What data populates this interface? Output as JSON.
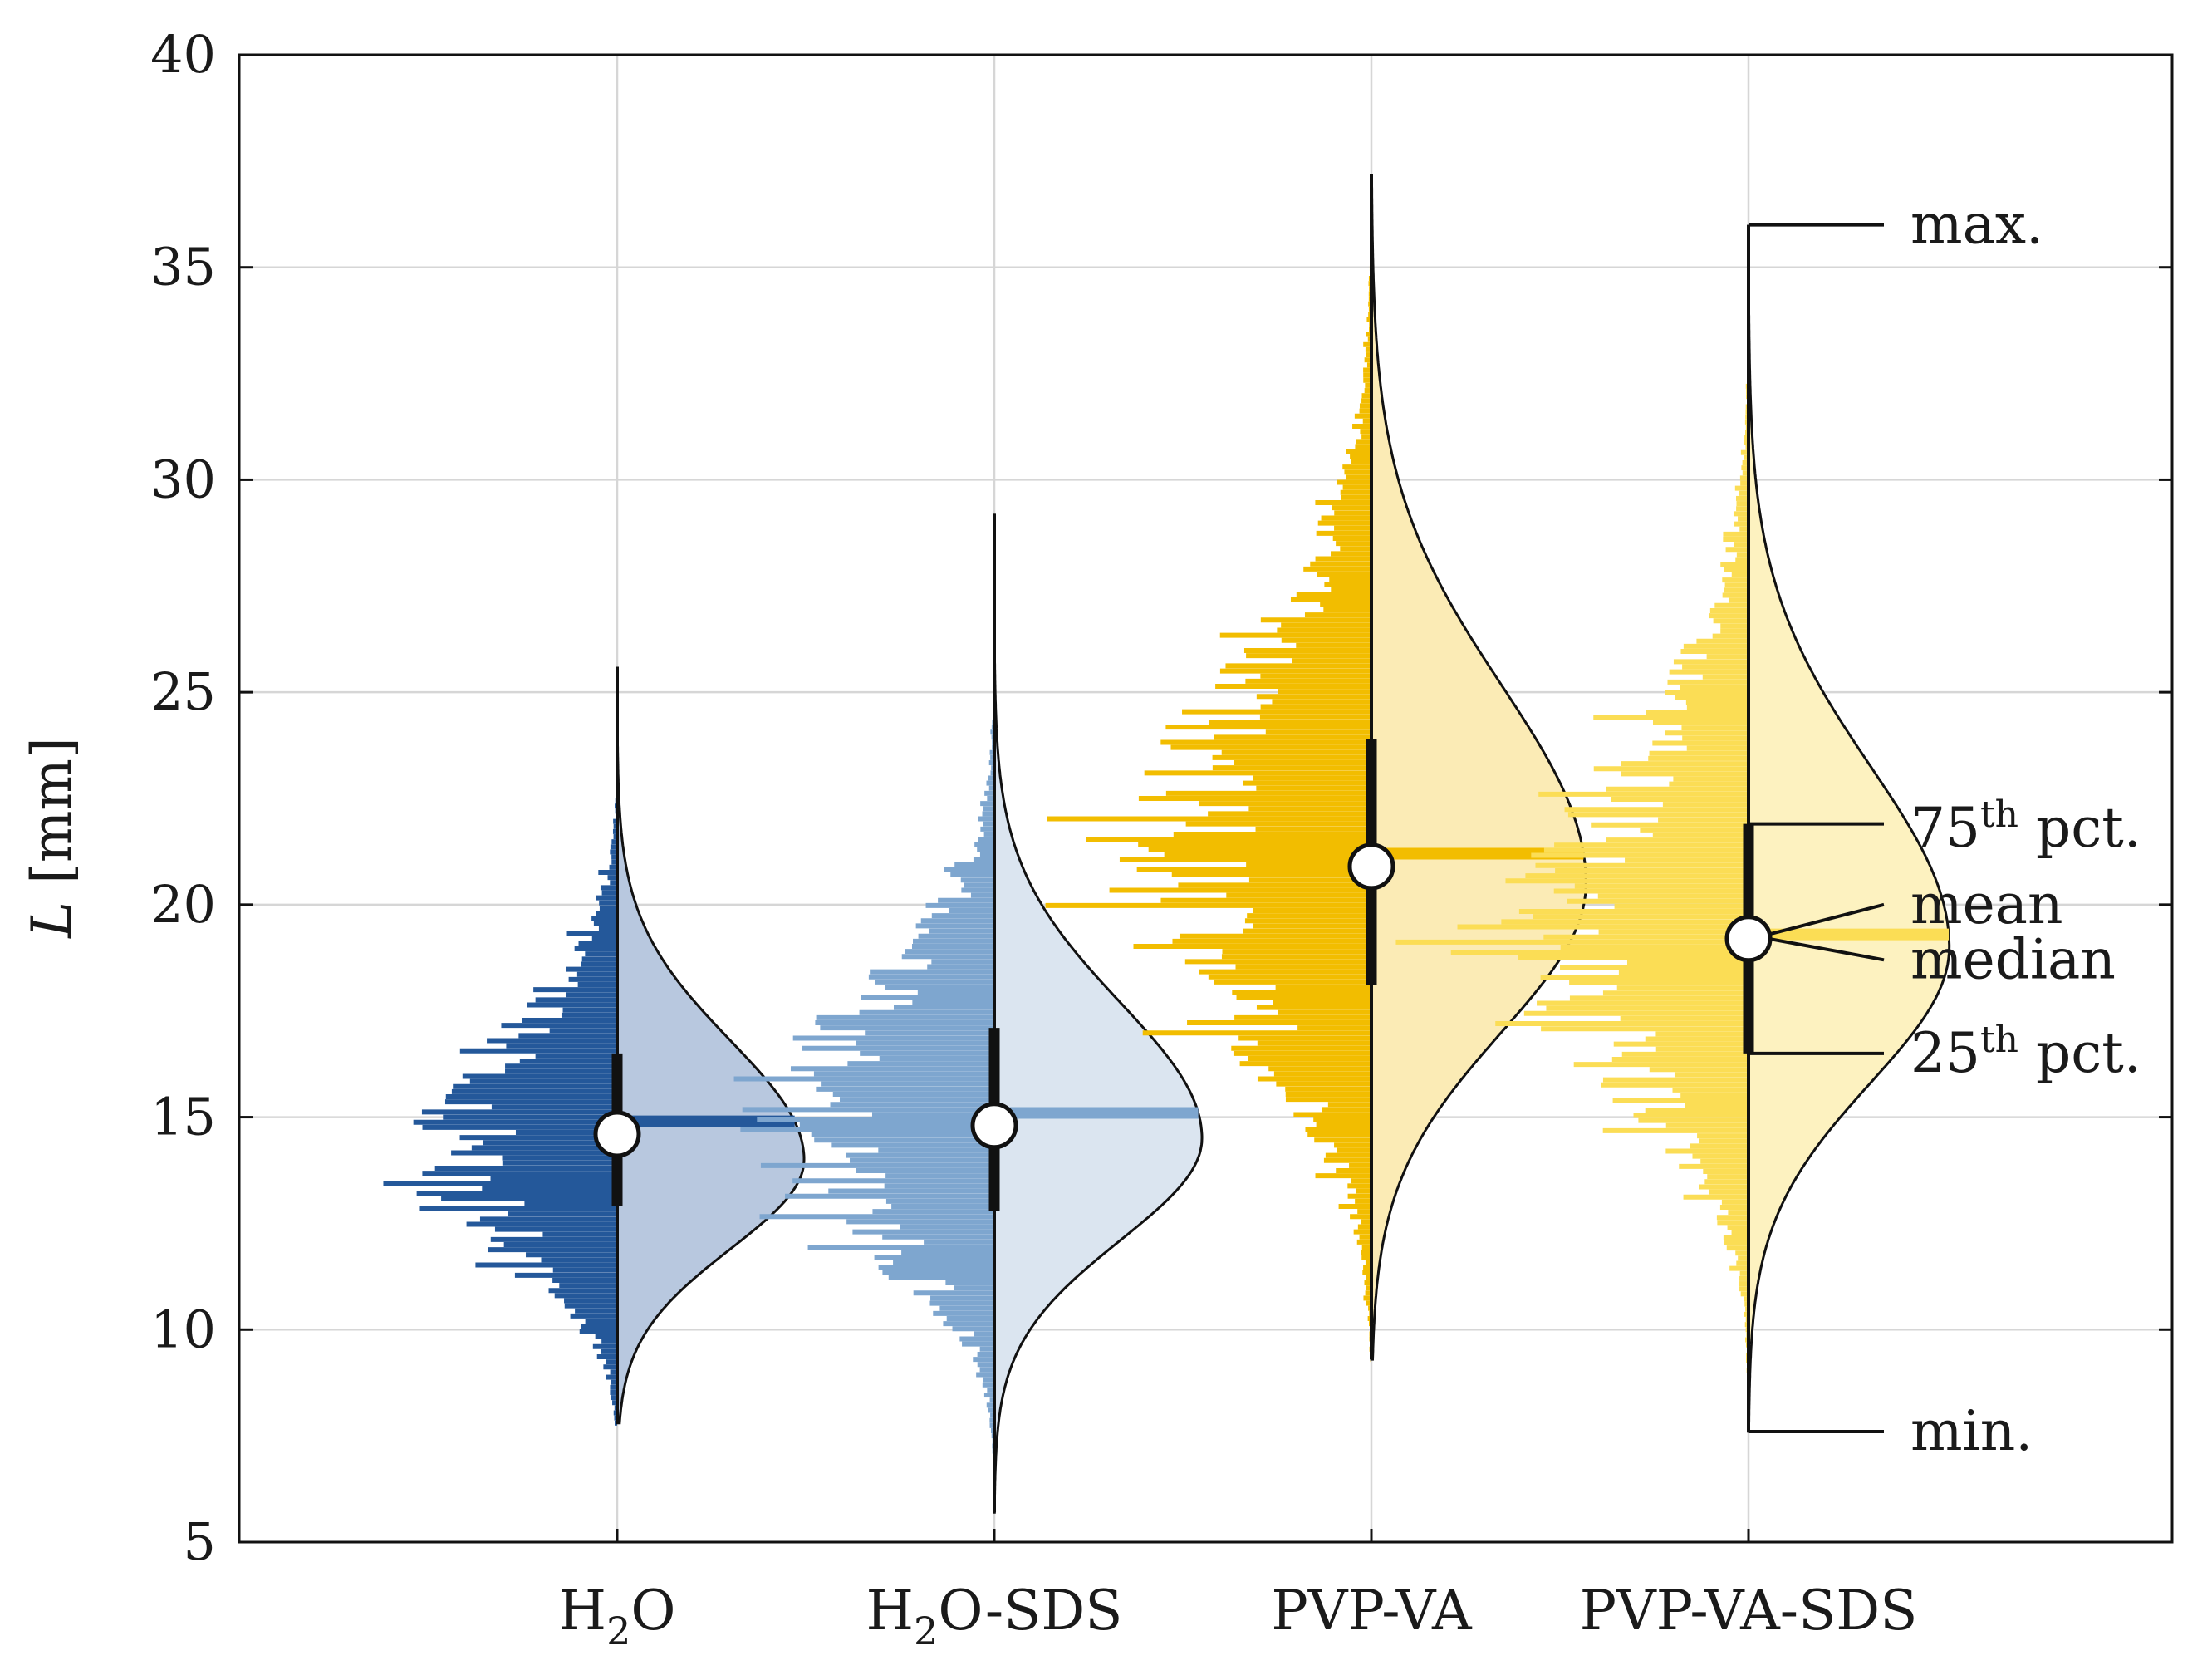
{
  "chart_data": {
    "type": "violin",
    "ylabel_var": "L",
    "ylabel_unit": " [mm]",
    "ylim": [
      5,
      40
    ],
    "yticks": [
      "5",
      "10",
      "15",
      "20",
      "25",
      "30",
      "35",
      "40"
    ],
    "grid": true,
    "categories": [
      {
        "id": "h2o",
        "label_main": "H",
        "label_sub": "2",
        "label_rest": "O",
        "color": "#24589a",
        "fill": "#b8c8df",
        "min": 7.8,
        "q1": 12.9,
        "median": 14.6,
        "mean": 14.9,
        "q3": 16.5,
        "max": 25.6,
        "kde_peak": 14.0,
        "kde_sd": 2.1,
        "kde_width": 0.27
      },
      {
        "id": "h2o-sds",
        "label_main": "H",
        "label_sub": "2",
        "label_rest": "O-SDS",
        "color": "#7ea6cf",
        "fill": "#dbe5f0",
        "min": 5.7,
        "q1": 12.8,
        "median": 14.8,
        "mean": 15.1,
        "q3": 17.1,
        "max": 29.2,
        "kde_peak": 14.5,
        "kde_sd": 2.4,
        "kde_width": 0.3
      },
      {
        "id": "pvp-va",
        "label_main": "PVP-VA",
        "label_sub": "",
        "label_rest": "",
        "color": "#f2bd00",
        "fill": "#fbebb5",
        "min": 9.3,
        "q1": 18.1,
        "median": 20.9,
        "mean": 21.2,
        "q3": 23.9,
        "max": 37.2,
        "kde_peak": 20.5,
        "kde_sd": 3.5,
        "kde_width": 0.31
      },
      {
        "id": "pvp-va-sds",
        "label_main": "PVP-VA-SDS",
        "label_sub": "",
        "label_rest": "",
        "color": "#fbdd55",
        "fill": "#fdf2c0",
        "min": 7.6,
        "q1": 16.5,
        "median": 19.2,
        "mean": 19.3,
        "q3": 21.9,
        "max": 36.0,
        "kde_peak": 19.0,
        "kde_sd": 3.2,
        "kde_width": 0.29
      }
    ],
    "annotations": [
      {
        "label": "max.",
        "sup": "",
        "rest": "",
        "target": "max",
        "text_y": 36.0
      },
      {
        "label": "75",
        "sup": "th",
        "rest": " pct.",
        "target": "q3",
        "text_y": 21.8
      },
      {
        "label": "mean",
        "sup": "",
        "rest": "",
        "target": "mean",
        "text_y": 20.0
      },
      {
        "label": "median",
        "sup": "",
        "rest": "",
        "target": "median",
        "text_y": 18.7
      },
      {
        "label": "25",
        "sup": "th",
        "rest": " pct.",
        "target": "q1",
        "text_y": 16.5
      },
      {
        "label": "min.",
        "sup": "",
        "rest": "",
        "target": "min",
        "text_y": 7.6
      }
    ],
    "annotation_category": "pvp-va-sds"
  }
}
